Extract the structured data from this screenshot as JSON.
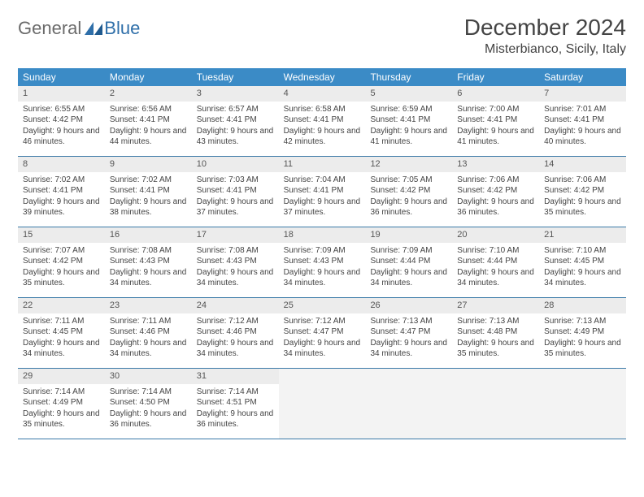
{
  "logo": {
    "general": "General",
    "blue": "Blue"
  },
  "title": "December 2024",
  "location": "Misterbianco, Sicily, Italy",
  "colors": {
    "header_bg": "#3b8bc6",
    "daynum_bg": "#ececec",
    "border": "#3b7aa8",
    "empty_bg": "#f3f3f3",
    "logo_gray": "#6b6b6b",
    "logo_blue": "#2f6fa9"
  },
  "weekdays": [
    "Sunday",
    "Monday",
    "Tuesday",
    "Wednesday",
    "Thursday",
    "Friday",
    "Saturday"
  ],
  "labels": {
    "sunrise": "Sunrise:",
    "sunset": "Sunset:",
    "daylight": "Daylight:"
  },
  "weeks": [
    [
      {
        "n": "1",
        "sr": "6:55 AM",
        "ss": "4:42 PM",
        "dl": "9 hours and 46 minutes."
      },
      {
        "n": "2",
        "sr": "6:56 AM",
        "ss": "4:41 PM",
        "dl": "9 hours and 44 minutes."
      },
      {
        "n": "3",
        "sr": "6:57 AM",
        "ss": "4:41 PM",
        "dl": "9 hours and 43 minutes."
      },
      {
        "n": "4",
        "sr": "6:58 AM",
        "ss": "4:41 PM",
        "dl": "9 hours and 42 minutes."
      },
      {
        "n": "5",
        "sr": "6:59 AM",
        "ss": "4:41 PM",
        "dl": "9 hours and 41 minutes."
      },
      {
        "n": "6",
        "sr": "7:00 AM",
        "ss": "4:41 PM",
        "dl": "9 hours and 41 minutes."
      },
      {
        "n": "7",
        "sr": "7:01 AM",
        "ss": "4:41 PM",
        "dl": "9 hours and 40 minutes."
      }
    ],
    [
      {
        "n": "8",
        "sr": "7:02 AM",
        "ss": "4:41 PM",
        "dl": "9 hours and 39 minutes."
      },
      {
        "n": "9",
        "sr": "7:02 AM",
        "ss": "4:41 PM",
        "dl": "9 hours and 38 minutes."
      },
      {
        "n": "10",
        "sr": "7:03 AM",
        "ss": "4:41 PM",
        "dl": "9 hours and 37 minutes."
      },
      {
        "n": "11",
        "sr": "7:04 AM",
        "ss": "4:41 PM",
        "dl": "9 hours and 37 minutes."
      },
      {
        "n": "12",
        "sr": "7:05 AM",
        "ss": "4:42 PM",
        "dl": "9 hours and 36 minutes."
      },
      {
        "n": "13",
        "sr": "7:06 AM",
        "ss": "4:42 PM",
        "dl": "9 hours and 36 minutes."
      },
      {
        "n": "14",
        "sr": "7:06 AM",
        "ss": "4:42 PM",
        "dl": "9 hours and 35 minutes."
      }
    ],
    [
      {
        "n": "15",
        "sr": "7:07 AM",
        "ss": "4:42 PM",
        "dl": "9 hours and 35 minutes."
      },
      {
        "n": "16",
        "sr": "7:08 AM",
        "ss": "4:43 PM",
        "dl": "9 hours and 34 minutes."
      },
      {
        "n": "17",
        "sr": "7:08 AM",
        "ss": "4:43 PM",
        "dl": "9 hours and 34 minutes."
      },
      {
        "n": "18",
        "sr": "7:09 AM",
        "ss": "4:43 PM",
        "dl": "9 hours and 34 minutes."
      },
      {
        "n": "19",
        "sr": "7:09 AM",
        "ss": "4:44 PM",
        "dl": "9 hours and 34 minutes."
      },
      {
        "n": "20",
        "sr": "7:10 AM",
        "ss": "4:44 PM",
        "dl": "9 hours and 34 minutes."
      },
      {
        "n": "21",
        "sr": "7:10 AM",
        "ss": "4:45 PM",
        "dl": "9 hours and 34 minutes."
      }
    ],
    [
      {
        "n": "22",
        "sr": "7:11 AM",
        "ss": "4:45 PM",
        "dl": "9 hours and 34 minutes."
      },
      {
        "n": "23",
        "sr": "7:11 AM",
        "ss": "4:46 PM",
        "dl": "9 hours and 34 minutes."
      },
      {
        "n": "24",
        "sr": "7:12 AM",
        "ss": "4:46 PM",
        "dl": "9 hours and 34 minutes."
      },
      {
        "n": "25",
        "sr": "7:12 AM",
        "ss": "4:47 PM",
        "dl": "9 hours and 34 minutes."
      },
      {
        "n": "26",
        "sr": "7:13 AM",
        "ss": "4:47 PM",
        "dl": "9 hours and 34 minutes."
      },
      {
        "n": "27",
        "sr": "7:13 AM",
        "ss": "4:48 PM",
        "dl": "9 hours and 35 minutes."
      },
      {
        "n": "28",
        "sr": "7:13 AM",
        "ss": "4:49 PM",
        "dl": "9 hours and 35 minutes."
      }
    ],
    [
      {
        "n": "29",
        "sr": "7:14 AM",
        "ss": "4:49 PM",
        "dl": "9 hours and 35 minutes."
      },
      {
        "n": "30",
        "sr": "7:14 AM",
        "ss": "4:50 PM",
        "dl": "9 hours and 36 minutes."
      },
      {
        "n": "31",
        "sr": "7:14 AM",
        "ss": "4:51 PM",
        "dl": "9 hours and 36 minutes."
      },
      null,
      null,
      null,
      null
    ]
  ]
}
